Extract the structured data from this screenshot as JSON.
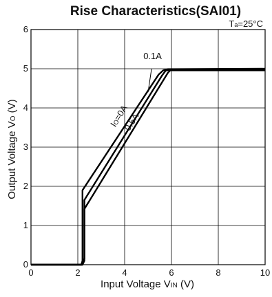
{
  "chart_data": {
    "type": "line",
    "title": "Rise Characteristics(SAI01)",
    "condition": {
      "prefix": "T",
      "sub": "a",
      "suffix": "=25°C"
    },
    "xlabel": {
      "prefix": "Input Voltage V",
      "sub": "IN",
      "suffix": " (V)"
    },
    "ylabel": {
      "prefix": "Output Voltage V",
      "sub": "O",
      "suffix": " (V)"
    },
    "xlim": [
      0,
      10
    ],
    "ylim": [
      0,
      6
    ],
    "xticks": [
      "0",
      "2",
      "4",
      "6",
      "8",
      "10"
    ],
    "yticks": [
      "0",
      "1",
      "2",
      "3",
      "4",
      "5",
      "6"
    ],
    "grid": true,
    "series": [
      {
        "name": "0.1A",
        "x": [
          0,
          2.2,
          2.2,
          5.45,
          5.65,
          5.85,
          10
        ],
        "y": [
          0,
          0,
          1.9,
          4.85,
          4.96,
          4.99,
          5.0
        ]
      },
      {
        "name_prefix": "I",
        "name_sub": "O",
        "name_suffix": "=0A",
        "x": [
          0,
          2.15,
          2.2,
          2.28,
          2.28,
          5.6,
          5.75,
          5.95,
          10
        ],
        "y": [
          0,
          0,
          0.1,
          0.15,
          1.65,
          4.83,
          4.95,
          4.98,
          4.99
        ]
      },
      {
        "name": "0.5A",
        "x": [
          0,
          2.2,
          2.28,
          2.28,
          5.85,
          5.95,
          10
        ],
        "y": [
          0,
          0,
          0.1,
          1.42,
          4.9,
          4.96,
          4.96
        ]
      }
    ]
  }
}
